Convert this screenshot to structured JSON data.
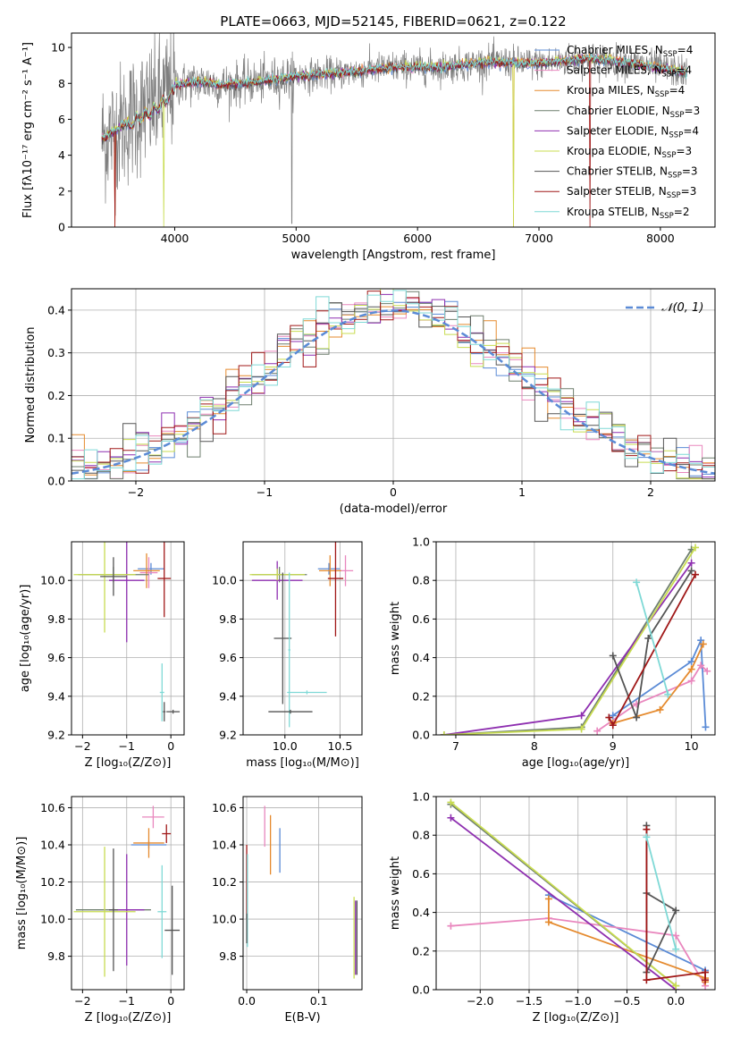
{
  "figure_title": "PLATE=0663, MJD=52145, FIBERID=0621, z=0.122",
  "colors": {
    "Chabrier MILES": "#5b8bd6",
    "Salpeter MILES": "#e987be",
    "Kroupa MILES": "#e58a2e",
    "Chabrier ELODIE": "#6f7f6f",
    "Salpeter ELODIE": "#8e2fb0",
    "Kroupa ELODIE": "#c8dc50",
    "Chabrier STELIB": "#555555",
    "Salpeter STELIB": "#a01818",
    "Kroupa STELIB": "#7fd9d6",
    "data": "#808080",
    "normal": "#5b8bd6",
    "grid": "#b0b0b0"
  },
  "legend_main": [
    {
      "label": "Chabrier MILES, N",
      "sub": "SSP",
      "tail": "=4"
    },
    {
      "label": "Salpeter MILES, N",
      "sub": "SSP",
      "tail": "=4"
    },
    {
      "label": "Kroupa MILES, N",
      "sub": "SSP",
      "tail": "=4"
    },
    {
      "label": "Chabrier ELODIE, N",
      "sub": "SSP",
      "tail": "=3"
    },
    {
      "label": "Salpeter ELODIE, N",
      "sub": "SSP",
      "tail": "=4"
    },
    {
      "label": "Kroupa ELODIE, N",
      "sub": "SSP",
      "tail": "=3"
    },
    {
      "label": "Chabrier STELIB, N",
      "sub": "SSP",
      "tail": "=3"
    },
    {
      "label": "Salpeter STELIB, N",
      "sub": "SSP",
      "tail": "=3"
    },
    {
      "label": "Kroupa STELIB, N",
      "sub": "SSP",
      "tail": "=2"
    }
  ],
  "chart_data": [
    {
      "id": "spectrum",
      "type": "line",
      "xlabel": "wavelength [Angstrom, rest frame]",
      "ylabel": "Flux [fλ10⁻¹⁷ erg cm⁻² s⁻¹ A⁻¹]",
      "xlim": [
        3150,
        8450
      ],
      "ylim": [
        0,
        10.8
      ],
      "xticks": [
        4000,
        5000,
        6000,
        7000,
        8000
      ],
      "yticks": [
        0,
        2,
        4,
        6,
        8,
        10
      ],
      "grid": false,
      "legend": "upper right",
      "continuum": {
        "x": [
          3400,
          3500,
          3600,
          3700,
          3800,
          3900,
          4000,
          4200,
          4400,
          4700,
          5000,
          5400,
          5800,
          6200,
          6600,
          7000,
          7400,
          7800,
          8200
        ],
        "y": [
          4.9,
          5.3,
          5.8,
          6.4,
          6.7,
          7.2,
          7.9,
          8.1,
          7.9,
          8.1,
          8.4,
          8.6,
          8.9,
          8.9,
          9.2,
          9.1,
          9.4,
          9.1,
          8.6
        ]
      },
      "data_x_range": [
        3400,
        8220
      ]
    },
    {
      "id": "residuals",
      "type": "step",
      "xlabel": "(data-model)/error",
      "ylabel": "Normed distribution",
      "xlim": [
        -2.5,
        2.5
      ],
      "ylim": [
        0,
        0.45
      ],
      "xticks": [
        -2,
        -1,
        0,
        1,
        2
      ],
      "yticks": [
        0.0,
        0.1,
        0.2,
        0.3,
        0.4
      ],
      "grid": true,
      "legend": "upper right",
      "legend_entry": "𝒩(0, 1)",
      "bin_width": 0.1
    },
    {
      "id": "age_vs_Z",
      "type": "errorbar",
      "xlabel": "Z [log₁₀(Z/Z⊙)]",
      "ylabel": "age  [log₁₀(age/yr)]",
      "xlim": [
        -2.25,
        0.3
      ],
      "ylim": [
        9.2,
        10.2
      ],
      "xticks": [
        -2,
        -1,
        0
      ],
      "yticks": [
        9.2,
        9.4,
        9.6,
        9.8,
        10.0
      ],
      "grid": true,
      "points": [
        {
          "m": "Chabrier MILES",
          "x": -0.45,
          "xerr": 0.3,
          "y": 10.06,
          "yerr": 0.03
        },
        {
          "m": "Salpeter MILES",
          "x": -0.5,
          "xerr": 0.2,
          "y": 10.04,
          "yerr": 0.08
        },
        {
          "m": "Kroupa MILES",
          "x": -0.55,
          "xerr": 0.3,
          "y": 10.05,
          "yerr": 0.09
        },
        {
          "m": "Chabrier ELODIE",
          "x": -1.3,
          "xerr": 0.8,
          "y": 10.03,
          "yerr": 0.04
        },
        {
          "m": "Salpeter ELODIE",
          "x": -1.0,
          "xerr": 0.4,
          "y": 10.0,
          "yerr": 0.32
        },
        {
          "m": "Kroupa ELODIE",
          "x": -1.5,
          "xerr": 0.7,
          "y": 10.03,
          "yerr": 0.3
        },
        {
          "m": "Chabrier STELIB",
          "x": -1.3,
          "xerr": 0.3,
          "y": 10.02,
          "yerr": 0.1
        },
        {
          "m": "Salpeter STELIB",
          "x": -0.15,
          "xerr": 0.15,
          "y": 10.01,
          "yerr": 0.2
        },
        {
          "m": "Kroupa STELIB",
          "x": -0.2,
          "xerr": 0.05,
          "y": 9.42,
          "yerr": 0.15
        },
        {
          "m": "Chabrier STELIB",
          "x": -0.15,
          "xerr": 0.03,
          "y": 9.32,
          "yerr": 0.05
        },
        {
          "m": "Chabrier STELIB",
          "x": 0.05,
          "xerr": 0.15,
          "y": 9.32,
          "yerr": 0.01
        }
      ]
    },
    {
      "id": "age_vs_mass",
      "type": "errorbar",
      "xlabel": "mass [log₁₀(M/M⊙)]",
      "ylabel": "",
      "xlim": [
        9.62,
        10.7
      ],
      "ylim": [
        9.2,
        10.2
      ],
      "xticks": [
        10.0,
        10.5
      ],
      "yticks": [
        9.2,
        9.4,
        9.6,
        9.8,
        10.0
      ],
      "grid": true,
      "points": [
        {
          "m": "Chabrier MILES",
          "x": 10.4,
          "xerr": 0.1,
          "y": 10.06,
          "yerr": 0.03
        },
        {
          "m": "Salpeter MILES",
          "x": 10.55,
          "xerr": 0.07,
          "y": 10.05,
          "yerr": 0.08
        },
        {
          "m": "Kroupa MILES",
          "x": 10.41,
          "xerr": 0.1,
          "y": 10.05,
          "yerr": 0.08
        },
        {
          "m": "Chabrier ELODIE",
          "x": 9.95,
          "xerr": 0.25,
          "y": 10.03,
          "yerr": 0.04
        },
        {
          "m": "Salpeter ELODIE",
          "x": 9.93,
          "xerr": 0.23,
          "y": 10.0,
          "yerr": 0.1
        },
        {
          "m": "Kroupa ELODIE",
          "x": 9.93,
          "xerr": 0.25,
          "y": 10.03,
          "yerr": 0.03
        },
        {
          "m": "Salpeter STELIB",
          "x": 10.46,
          "xerr": 0.07,
          "y": 10.01,
          "yerr": 0.3
        },
        {
          "m": "Chabrier STELIB",
          "x": 9.98,
          "xerr": 0.08,
          "y": 9.7,
          "yerr": 0.34
        },
        {
          "m": "Kroupa STELIB",
          "x": 10.04,
          "xerr": 0.01,
          "y": 9.64,
          "yerr": 0.4
        },
        {
          "m": "Kroupa STELIB",
          "x": 10.2,
          "xerr": 0.18,
          "y": 9.42,
          "yerr": 0.01
        },
        {
          "m": "Chabrier STELIB",
          "x": 10.05,
          "xerr": 0.2,
          "y": 9.32,
          "yerr": 0.01
        }
      ]
    },
    {
      "id": "weight_vs_age",
      "type": "line",
      "xlabel": "age  [log₁₀(age/yr)]",
      "ylabel": "mass weight",
      "xlim": [
        6.75,
        10.3
      ],
      "ylim": [
        0,
        1.0
      ],
      "xticks": [
        7,
        8,
        9,
        10
      ],
      "yticks": [
        0.0,
        0.2,
        0.4,
        0.6,
        0.8,
        1.0
      ],
      "grid": true,
      "series": [
        {
          "m": "Chabrier MILES",
          "x": [
            9.0,
            10.0,
            10.12,
            10.18
          ],
          "y": [
            0.1,
            0.38,
            0.49,
            0.04
          ]
        },
        {
          "m": "Salpeter MILES",
          "x": [
            8.8,
            9.3,
            10.0,
            10.12,
            10.2
          ],
          "y": [
            0.02,
            0.16,
            0.28,
            0.36,
            0.33
          ]
        },
        {
          "m": "Kroupa MILES",
          "x": [
            9.0,
            9.6,
            10.0,
            10.15
          ],
          "y": [
            0.06,
            0.13,
            0.34,
            0.47
          ]
        },
        {
          "m": "Chabrier ELODIE",
          "x": [
            6.85,
            8.6,
            10.0
          ],
          "y": [
            0.0,
            0.04,
            0.96
          ]
        },
        {
          "m": "Salpeter ELODIE",
          "x": [
            6.85,
            8.6,
            10.0
          ],
          "y": [
            0.0,
            0.1,
            0.89
          ]
        },
        {
          "m": "Kroupa ELODIE",
          "x": [
            6.85,
            8.6,
            10.05
          ],
          "y": [
            0.0,
            0.03,
            0.97
          ]
        },
        {
          "m": "Chabrier STELIB",
          "x": [
            9.0,
            9.3,
            9.45,
            10.0
          ],
          "y": [
            0.41,
            0.09,
            0.5,
            0.85
          ]
        },
        {
          "m": "Salpeter STELIB",
          "x": [
            8.95,
            9.0,
            10.05
          ],
          "y": [
            0.09,
            0.05,
            0.83
          ]
        },
        {
          "m": "Kroupa STELIB",
          "x": [
            9.3,
            9.7
          ],
          "y": [
            0.79,
            0.21
          ]
        }
      ]
    },
    {
      "id": "mass_vs_Z",
      "type": "errorbar",
      "xlabel": "Z [log₁₀(Z/Z⊙)]",
      "ylabel": "mass [log₁₀(M/M⊙)]",
      "xlim": [
        -2.25,
        0.3
      ],
      "ylim": [
        9.62,
        10.66
      ],
      "xticks": [
        -2,
        -1,
        0
      ],
      "yticks": [
        9.8,
        10.0,
        10.2,
        10.4,
        10.6
      ],
      "grid": true,
      "points": [
        {
          "m": "Chabrier MILES",
          "x": -0.5,
          "xerr": 0.4,
          "y": 10.4,
          "yerr": 0.02
        },
        {
          "m": "Salpeter MILES",
          "x": -0.4,
          "xerr": 0.25,
          "y": 10.55,
          "yerr": 0.06
        },
        {
          "m": "Kroupa MILES",
          "x": -0.5,
          "xerr": 0.35,
          "y": 10.41,
          "yerr": 0.08
        },
        {
          "m": "Chabrier ELODIE",
          "x": -1.3,
          "xerr": 0.85,
          "y": 10.05,
          "yerr": 0.01
        },
        {
          "m": "Salpeter ELODIE",
          "x": -1.0,
          "xerr": 0.4,
          "y": 10.05,
          "yerr": 0.3
        },
        {
          "m": "Kroupa ELODIE",
          "x": -1.5,
          "xerr": 0.7,
          "y": 10.04,
          "yerr": 0.35
        },
        {
          "m": "Chabrier STELIB",
          "x": -1.3,
          "xerr": 0.1,
          "y": 10.05,
          "yerr": 0.33
        },
        {
          "m": "Salpeter STELIB",
          "x": -0.1,
          "xerr": 0.1,
          "y": 10.46,
          "yerr": 0.05
        },
        {
          "m": "Kroupa STELIB",
          "x": -0.2,
          "xerr": 0.1,
          "y": 10.04,
          "yerr": 0.25
        },
        {
          "m": "Chabrier STELIB",
          "x": 0.03,
          "xerr": 0.17,
          "y": 9.94,
          "yerr": 0.24
        }
      ]
    },
    {
      "id": "mass_vs_ebv",
      "type": "errorbar",
      "xlabel": "E(B-V)",
      "ylabel": "",
      "xlim": [
        -0.005,
        0.16
      ],
      "ylim": [
        9.62,
        10.66
      ],
      "xticks": [
        0.0,
        0.1
      ],
      "yticks": [
        9.8,
        10.0,
        10.2,
        10.4,
        10.6
      ],
      "grid": true,
      "points": [
        {
          "m": "Chabrier MILES",
          "x": 0.046,
          "xerr": 0,
          "y": 10.37,
          "yerr": 0.12
        },
        {
          "m": "Salpeter MILES",
          "x": 0.025,
          "xerr": 0,
          "y": 10.5,
          "yerr": 0.11
        },
        {
          "m": "Kroupa MILES",
          "x": 0.033,
          "xerr": 0,
          "y": 10.4,
          "yerr": 0.16
        },
        {
          "m": "Salpeter ELODIE",
          "x": 0.151,
          "xerr": 0,
          "y": 9.9,
          "yerr": 0.2
        },
        {
          "m": "Kroupa ELODIE",
          "x": 0.149,
          "xerr": 0,
          "y": 9.9,
          "yerr": 0.22
        },
        {
          "m": "Chabrier STELIB",
          "x": 0.153,
          "xerr": 0,
          "y": 9.9,
          "yerr": 0.2
        },
        {
          "m": "Salpeter STELIB",
          "x": 0.0,
          "xerr": 0,
          "y": 10.2,
          "yerr": 0.2
        },
        {
          "m": "Kroupa STELIB",
          "x": 0.001,
          "xerr": 0,
          "y": 10.1,
          "yerr": 0.25
        },
        {
          "m": "Chabrier STELIB",
          "x": 0.0,
          "xerr": 0,
          "y": 9.95,
          "yerr": 0.08
        }
      ]
    },
    {
      "id": "weight_vs_Z",
      "type": "line",
      "xlabel": "Z [log₁₀(Z/Z⊙)]",
      "ylabel": "mass weight",
      "xlim": [
        -2.45,
        0.4
      ],
      "ylim": [
        0,
        1.0
      ],
      "xticks": [
        -2.0,
        -1.5,
        -1.0,
        -0.5,
        0.0
      ],
      "yticks": [
        0.0,
        0.2,
        0.4,
        0.6,
        0.8,
        1.0
      ],
      "grid": true,
      "series": [
        {
          "m": "Chabrier MILES",
          "x": [
            -1.3,
            0.3
          ],
          "y": [
            0.49,
            0.1
          ]
        },
        {
          "m": "Salpeter MILES",
          "x": [
            -2.3,
            -1.3,
            0.0,
            0.3
          ],
          "y": [
            0.33,
            0.37,
            0.28,
            0.02
          ]
        },
        {
          "m": "Kroupa MILES",
          "x": [
            -1.3,
            -1.3,
            0.3,
            0.3
          ],
          "y": [
            0.47,
            0.35,
            0.06,
            0.04
          ]
        },
        {
          "m": "Chabrier ELODIE",
          "x": [
            -2.3,
            0.0
          ],
          "y": [
            0.96,
            0.02
          ]
        },
        {
          "m": "Salpeter ELODIE",
          "x": [
            -2.3,
            0.0
          ],
          "y": [
            0.89,
            0.0
          ]
        },
        {
          "m": "Kroupa ELODIE",
          "x": [
            -2.3,
            0.0
          ],
          "y": [
            0.97,
            0.02
          ]
        },
        {
          "m": "Chabrier STELIB",
          "x": [
            -0.3,
            -0.3,
            0.0,
            -0.3
          ],
          "y": [
            0.85,
            0.09,
            0.41,
            0.5
          ]
        },
        {
          "m": "Salpeter STELIB",
          "x": [
            -0.3,
            -0.3,
            0.3,
            0.3
          ],
          "y": [
            0.83,
            0.05,
            0.09,
            0.05
          ]
        },
        {
          "m": "Kroupa STELIB",
          "x": [
            -0.3,
            0.0
          ],
          "y": [
            0.79,
            0.21
          ]
        }
      ]
    }
  ]
}
